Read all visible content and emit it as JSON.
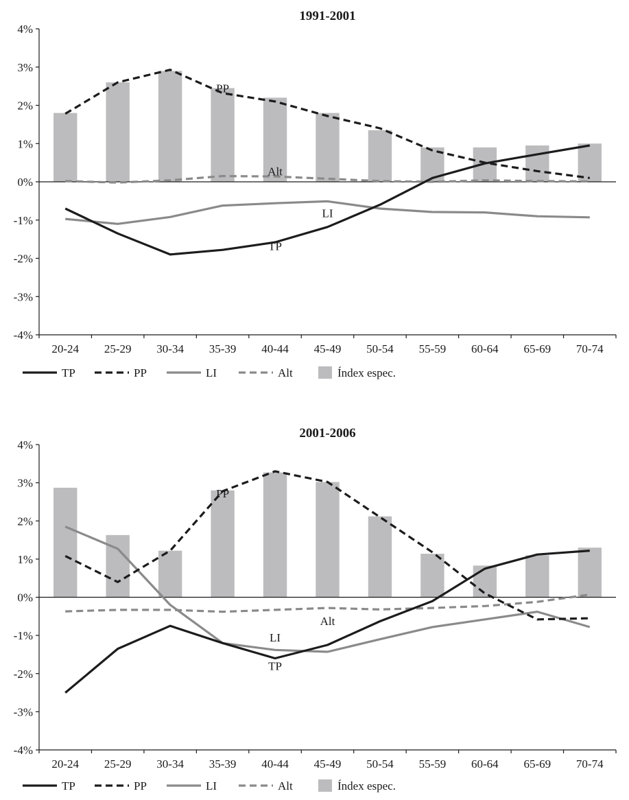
{
  "chart_data": [
    {
      "type": "bar",
      "title": "1991-2001",
      "xlabel": "",
      "ylabel": "",
      "categories": [
        "20-24",
        "25-29",
        "30-34",
        "35-39",
        "40-44",
        "45-49",
        "50-54",
        "55-59",
        "60-64",
        "65-69",
        "70-74"
      ],
      "ylim": [
        -4,
        4
      ],
      "yticks": [
        "4%",
        "3%",
        "2%",
        "1%",
        "0%",
        "-1%",
        "-2%",
        "-3%",
        "-4%"
      ],
      "bars": {
        "name": "Índex espec.",
        "color": "#bcbcbe",
        "values": [
          1.8,
          2.6,
          2.9,
          2.45,
          2.2,
          1.8,
          1.35,
          0.9,
          0.9,
          0.95,
          1.0
        ]
      },
      "series": [
        {
          "name": "TP",
          "style": "solid",
          "color": "#1c1c1c",
          "values": [
            -0.7,
            -1.35,
            -1.9,
            -1.78,
            -1.58,
            -1.18,
            -0.6,
            0.1,
            0.48,
            0.72,
            0.95
          ]
        },
        {
          "name": "PP",
          "style": "dashed",
          "color": "#1c1c1c",
          "values": [
            1.78,
            2.6,
            2.93,
            2.32,
            2.1,
            1.72,
            1.4,
            0.82,
            0.5,
            0.28,
            0.1
          ]
        },
        {
          "name": "LI",
          "style": "solid",
          "color": "#8a8a8a",
          "values": [
            -0.97,
            -1.1,
            -0.92,
            -0.62,
            -0.56,
            -0.51,
            -0.7,
            -0.79,
            -0.8,
            -0.9,
            -0.93
          ]
        },
        {
          "name": "Alt",
          "style": "dashed",
          "color": "#8a8a8a",
          "values": [
            0.02,
            -0.02,
            0.04,
            0.15,
            0.14,
            0.08,
            0.02,
            0.0,
            0.04,
            0.02,
            0.01
          ]
        }
      ],
      "annotations": [
        {
          "text": "PP",
          "x": "35-39",
          "y": 2.45
        },
        {
          "text": "Alt",
          "x": "40-44",
          "y": 0.28
        },
        {
          "text": "LI",
          "x": "45-49",
          "y": -0.82
        },
        {
          "text": "TP",
          "x": "40-44",
          "y": -1.68
        }
      ],
      "legend_position": "bottom",
      "grid": false
    },
    {
      "type": "bar",
      "title": "2001-2006",
      "xlabel": "",
      "ylabel": "",
      "categories": [
        "20-24",
        "25-29",
        "30-34",
        "35-39",
        "40-44",
        "45-49",
        "50-54",
        "55-59",
        "60-64",
        "65-69",
        "70-74"
      ],
      "ylim": [
        -4,
        4
      ],
      "yticks": [
        "4%",
        "3%",
        "2%",
        "1%",
        "0%",
        "-1%",
        "-2%",
        "-3%",
        "-4%"
      ],
      "bars": {
        "name": "Índex espec.",
        "color": "#bcbcbe",
        "values": [
          2.87,
          1.63,
          1.22,
          2.8,
          3.27,
          3.02,
          2.12,
          1.14,
          0.83,
          1.1,
          1.3
        ]
      },
      "series": [
        {
          "name": "TP",
          "style": "solid",
          "color": "#1c1c1c",
          "values": [
            -2.5,
            -1.35,
            -0.75,
            -1.2,
            -1.6,
            -1.25,
            -0.63,
            -0.1,
            0.75,
            1.12,
            1.22
          ]
        },
        {
          "name": "PP",
          "style": "dashed",
          "color": "#1c1c1c",
          "values": [
            1.08,
            0.4,
            1.22,
            2.78,
            3.3,
            3.02,
            2.1,
            1.18,
            0.1,
            -0.58,
            -0.55
          ]
        },
        {
          "name": "LI",
          "style": "solid",
          "color": "#8a8a8a",
          "values": [
            1.85,
            1.27,
            -0.2,
            -1.2,
            -1.38,
            -1.43,
            -1.1,
            -0.78,
            -0.58,
            -0.38,
            -0.78
          ]
        },
        {
          "name": "Alt",
          "style": "dashed",
          "color": "#8a8a8a",
          "values": [
            -0.37,
            -0.33,
            -0.33,
            -0.38,
            -0.33,
            -0.28,
            -0.32,
            -0.28,
            -0.23,
            -0.12,
            0.07
          ]
        }
      ],
      "annotations": [
        {
          "text": "PP",
          "x": "35-39",
          "y": 2.72
        },
        {
          "text": "Alt",
          "x": "45-49",
          "y": -0.62
        },
        {
          "text": "LI",
          "x": "40-44",
          "y": -1.05
        },
        {
          "text": "TP",
          "x": "40-44",
          "y": -1.8
        }
      ],
      "legend_position": "bottom",
      "grid": false
    }
  ]
}
